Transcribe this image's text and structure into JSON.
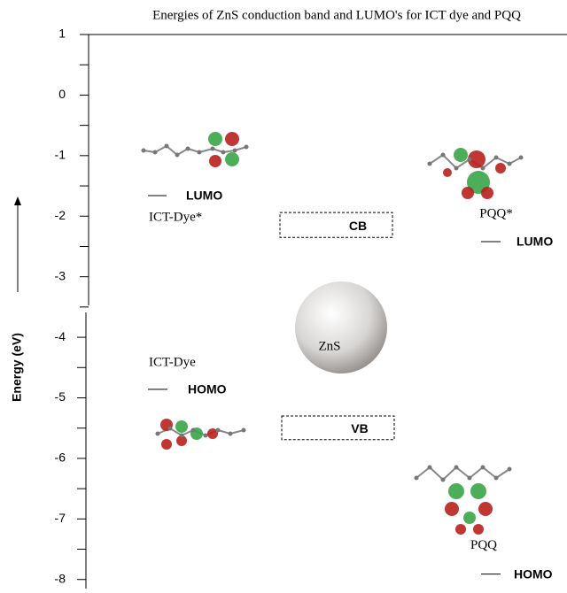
{
  "chart_data": {
    "type": "energy-diagram",
    "title": "Energies of ZnS conduction band and LUMO's for ICT dye and PQQ",
    "ylabel": "Energy (eV)",
    "ylim": [
      -8.15,
      1
    ],
    "yticks": [
      1,
      0,
      -1,
      -2,
      -3,
      -4,
      -5,
      -6,
      -7,
      -8
    ],
    "yminor": [
      0.5,
      -0.5,
      -1.5,
      -2.5,
      -3.5,
      -4.5,
      -5.5,
      -6.5,
      -7.5
    ],
    "levels": [
      {
        "name": "LUMO",
        "molecule": "ICT-Dye*",
        "value": -1.66
      },
      {
        "name": "HOMO",
        "molecule": "ICT-Dye",
        "value": -4.86
      },
      {
        "name": "LUMO",
        "molecule": "PQQ*",
        "value": -2.42
      },
      {
        "name": "HOMO",
        "molecule": "PQQ",
        "value": -7.91
      }
    ],
    "bands": [
      {
        "name": "CB",
        "values": [
          -1.94,
          -2.35
        ]
      },
      {
        "name": "VB",
        "values": [
          -5.3,
          -5.69
        ]
      }
    ],
    "particle": "ZnS"
  }
}
